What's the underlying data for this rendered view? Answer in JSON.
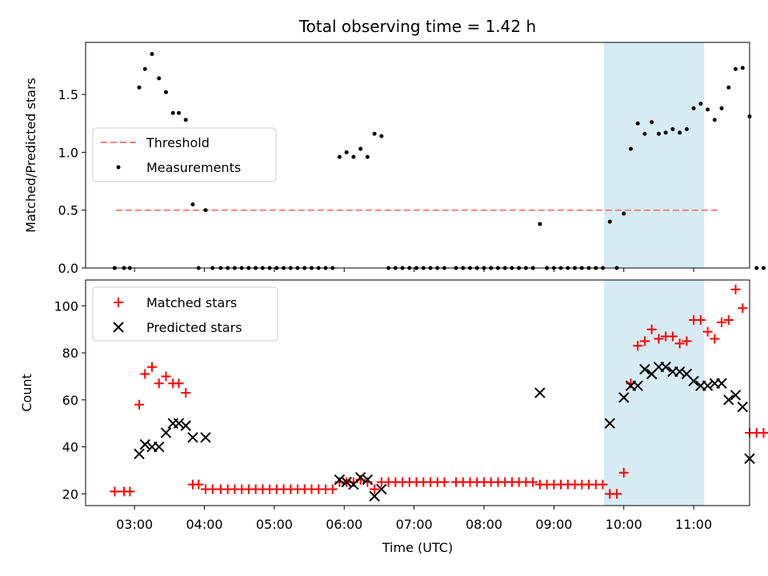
{
  "chart_data": [
    {
      "type": "scatter",
      "title": "Total observing time = 1.42 h",
      "xlabel": "",
      "ylabel": "Matched/Predicted stars",
      "xlim": [
        "02:18",
        "11:48"
      ],
      "ylim": [
        0,
        1.95
      ],
      "yticks": [
        0.0,
        0.5,
        1.0,
        1.5
      ],
      "ytick_labels": [
        "0.0",
        "0.5",
        "1.0",
        "1.5"
      ],
      "shaded_span": {
        "x": [
          "09:43",
          "11:09"
        ],
        "color": "#add8e6"
      },
      "legend": {
        "placement": "center-left"
      },
      "threshold": {
        "name": "Threshold",
        "value": 0.5,
        "x": [
          "02:44",
          "11:21"
        ],
        "color": "#f08080"
      },
      "series": [
        {
          "name": "Measurements",
          "color": "#000000",
          "marker": "dot",
          "points": [
            [
              "02:43",
              0
            ],
            [
              "02:51",
              0
            ],
            [
              "02:56",
              0
            ],
            [
              "03:04",
              1.56
            ],
            [
              "03:09",
              1.72
            ],
            [
              "03:15",
              1.85
            ],
            [
              "03:21",
              1.64
            ],
            [
              "03:27",
              1.52
            ],
            [
              "03:33",
              1.34
            ],
            [
              "03:38",
              1.34
            ],
            [
              "03:44",
              1.28
            ],
            [
              "03:50",
              0.55
            ],
            [
              "03:55",
              0
            ],
            [
              "04:01",
              0.5
            ],
            [
              "04:07",
              0
            ],
            [
              "04:14",
              0
            ],
            [
              "04:20",
              0
            ],
            [
              "04:26",
              0
            ],
            [
              "04:32",
              0
            ],
            [
              "04:38",
              0
            ],
            [
              "04:44",
              0
            ],
            [
              "04:50",
              0
            ],
            [
              "04:56",
              0
            ],
            [
              "05:02",
              0
            ],
            [
              "05:08",
              0
            ],
            [
              "05:14",
              0
            ],
            [
              "05:20",
              0
            ],
            [
              "05:26",
              0
            ],
            [
              "05:32",
              0
            ],
            [
              "05:38",
              0
            ],
            [
              "05:44",
              0
            ],
            [
              "05:50",
              0
            ],
            [
              "05:56",
              0.96
            ],
            [
              "06:02",
              1.0
            ],
            [
              "06:08",
              0.96
            ],
            [
              "06:14",
              1.03
            ],
            [
              "06:20",
              0.96
            ],
            [
              "06:26",
              1.16
            ],
            [
              "06:32",
              1.14
            ],
            [
              "06:38",
              0
            ],
            [
              "06:44",
              0
            ],
            [
              "06:50",
              0
            ],
            [
              "06:56",
              0
            ],
            [
              "07:02",
              0
            ],
            [
              "07:08",
              0
            ],
            [
              "07:14",
              0
            ],
            [
              "07:20",
              0
            ],
            [
              "07:26",
              0
            ],
            [
              "07:36",
              0
            ],
            [
              "07:42",
              0
            ],
            [
              "07:48",
              0
            ],
            [
              "07:54",
              0
            ],
            [
              "08:00",
              0
            ],
            [
              "08:06",
              0
            ],
            [
              "08:12",
              0
            ],
            [
              "08:18",
              0
            ],
            [
              "08:24",
              0
            ],
            [
              "08:30",
              0
            ],
            [
              "08:36",
              0
            ],
            [
              "08:42",
              0
            ],
            [
              "08:48",
              0.38
            ],
            [
              "08:54",
              0
            ],
            [
              "09:00",
              0
            ],
            [
              "09:06",
              0
            ],
            [
              "09:12",
              0
            ],
            [
              "09:18",
              0
            ],
            [
              "09:24",
              0
            ],
            [
              "09:30",
              0
            ],
            [
              "09:36",
              0
            ],
            [
              "09:42",
              0
            ],
            [
              "09:48",
              0.4
            ],
            [
              "09:54",
              0
            ],
            [
              "10:00",
              0.47
            ],
            [
              "10:06",
              1.03
            ],
            [
              "10:12",
              1.25
            ],
            [
              "10:18",
              1.16
            ],
            [
              "10:24",
              1.26
            ],
            [
              "10:30",
              1.16
            ],
            [
              "10:36",
              1.17
            ],
            [
              "10:42",
              1.2
            ],
            [
              "10:48",
              1.17
            ],
            [
              "10:54",
              1.2
            ],
            [
              "11:00",
              1.38
            ],
            [
              "11:06",
              1.42
            ],
            [
              "11:12",
              1.37
            ],
            [
              "11:18",
              1.28
            ],
            [
              "11:24",
              1.38
            ],
            [
              "11:30",
              1.56
            ],
            [
              "11:36",
              1.72
            ],
            [
              "11:42",
              1.73
            ],
            [
              "11:48",
              1.31
            ],
            [
              "11:54",
              0
            ],
            [
              "12:00",
              0
            ],
            [
              "12:06",
              0
            ]
          ]
        }
      ]
    },
    {
      "type": "scatter",
      "title": "",
      "xlabel": "Time (UTC)",
      "ylabel": "Count",
      "xlim": [
        "02:18",
        "11:48"
      ],
      "ylim": [
        15,
        111
      ],
      "yticks": [
        20,
        40,
        60,
        80,
        100
      ],
      "ytick_labels": [
        "20",
        "40",
        "60",
        "80",
        "100"
      ],
      "xticks": [
        "03:00",
        "04:00",
        "05:00",
        "06:00",
        "07:00",
        "08:00",
        "09:00",
        "10:00",
        "11:00"
      ],
      "shaded_span": {
        "x": [
          "09:43",
          "11:09"
        ],
        "color": "#add8e6"
      },
      "legend": {
        "placement": "top-left"
      },
      "series": [
        {
          "name": "Matched stars",
          "color": "#ff0000",
          "marker": "plus",
          "points": [
            [
              "02:43",
              21
            ],
            [
              "02:51",
              21
            ],
            [
              "02:56",
              21
            ],
            [
              "03:04",
              58
            ],
            [
              "03:09",
              71
            ],
            [
              "03:15",
              74
            ],
            [
              "03:21",
              67
            ],
            [
              "03:27",
              70
            ],
            [
              "03:33",
              67
            ],
            [
              "03:38",
              67
            ],
            [
              "03:44",
              63
            ],
            [
              "03:50",
              24
            ],
            [
              "03:55",
              24
            ],
            [
              "04:01",
              22
            ],
            [
              "04:07",
              22
            ],
            [
              "04:14",
              22
            ],
            [
              "04:20",
              22
            ],
            [
              "04:26",
              22
            ],
            [
              "04:32",
              22
            ],
            [
              "04:38",
              22
            ],
            [
              "04:44",
              22
            ],
            [
              "04:50",
              22
            ],
            [
              "04:56",
              22
            ],
            [
              "05:02",
              22
            ],
            [
              "05:08",
              22
            ],
            [
              "05:14",
              22
            ],
            [
              "05:20",
              22
            ],
            [
              "05:26",
              22
            ],
            [
              "05:32",
              22
            ],
            [
              "05:38",
              22
            ],
            [
              "05:44",
              22
            ],
            [
              "05:50",
              22
            ],
            [
              "05:56",
              25
            ],
            [
              "06:02",
              25
            ],
            [
              "06:08",
              25
            ],
            [
              "06:14",
              26
            ],
            [
              "06:20",
              25
            ],
            [
              "06:26",
              22
            ],
            [
              "06:32",
              25
            ],
            [
              "06:38",
              25
            ],
            [
              "06:44",
              25
            ],
            [
              "06:50",
              25
            ],
            [
              "06:56",
              25
            ],
            [
              "07:02",
              25
            ],
            [
              "07:08",
              25
            ],
            [
              "07:14",
              25
            ],
            [
              "07:20",
              25
            ],
            [
              "07:26",
              25
            ],
            [
              "07:36",
              25
            ],
            [
              "07:42",
              25
            ],
            [
              "07:48",
              25
            ],
            [
              "07:54",
              25
            ],
            [
              "08:00",
              25
            ],
            [
              "08:06",
              25
            ],
            [
              "08:12",
              25
            ],
            [
              "08:18",
              25
            ],
            [
              "08:24",
              25
            ],
            [
              "08:30",
              25
            ],
            [
              "08:36",
              25
            ],
            [
              "08:42",
              25
            ],
            [
              "08:48",
              24
            ],
            [
              "08:54",
              24
            ],
            [
              "09:00",
              24
            ],
            [
              "09:06",
              24
            ],
            [
              "09:12",
              24
            ],
            [
              "09:18",
              24
            ],
            [
              "09:24",
              24
            ],
            [
              "09:30",
              24
            ],
            [
              "09:36",
              24
            ],
            [
              "09:42",
              24
            ],
            [
              "09:48",
              20
            ],
            [
              "09:54",
              20
            ],
            [
              "10:00",
              29
            ],
            [
              "10:06",
              67
            ],
            [
              "10:12",
              83
            ],
            [
              "10:18",
              85
            ],
            [
              "10:24",
              90
            ],
            [
              "10:30",
              86
            ],
            [
              "10:36",
              87
            ],
            [
              "10:42",
              87
            ],
            [
              "10:48",
              84
            ],
            [
              "10:54",
              85
            ],
            [
              "11:00",
              94
            ],
            [
              "11:06",
              94
            ],
            [
              "11:12",
              89
            ],
            [
              "11:18",
              86
            ],
            [
              "11:24",
              93
            ],
            [
              "11:30",
              94
            ],
            [
              "11:36",
              107
            ],
            [
              "11:42",
              99
            ],
            [
              "11:48",
              46
            ],
            [
              "11:54",
              46
            ],
            [
              "12:00",
              46
            ]
          ]
        },
        {
          "name": "Predicted stars",
          "color": "#000000",
          "marker": "x",
          "points": [
            [
              "03:04",
              37
            ],
            [
              "03:09",
              41
            ],
            [
              "03:15",
              40
            ],
            [
              "03:21",
              40
            ],
            [
              "03:27",
              46
            ],
            [
              "03:33",
              50
            ],
            [
              "03:38",
              50
            ],
            [
              "03:44",
              49
            ],
            [
              "03:50",
              44
            ],
            [
              "04:01",
              44
            ],
            [
              "05:56",
              26
            ],
            [
              "06:02",
              25
            ],
            [
              "06:08",
              24
            ],
            [
              "06:14",
              27
            ],
            [
              "06:20",
              26
            ],
            [
              "06:26",
              19
            ],
            [
              "06:32",
              22
            ],
            [
              "08:48",
              63
            ],
            [
              "09:48",
              50
            ],
            [
              "10:00",
              61
            ],
            [
              "10:06",
              66
            ],
            [
              "10:12",
              66
            ],
            [
              "10:18",
              73
            ],
            [
              "10:24",
              71
            ],
            [
              "10:30",
              74
            ],
            [
              "10:36",
              74
            ],
            [
              "10:42",
              72
            ],
            [
              "10:48",
              72
            ],
            [
              "10:54",
              71
            ],
            [
              "11:00",
              68
            ],
            [
              "11:06",
              66
            ],
            [
              "11:12",
              66
            ],
            [
              "11:18",
              67
            ],
            [
              "11:24",
              67
            ],
            [
              "11:30",
              60
            ],
            [
              "11:36",
              62
            ],
            [
              "11:42",
              57
            ],
            [
              "11:48",
              35
            ]
          ]
        }
      ]
    }
  ]
}
